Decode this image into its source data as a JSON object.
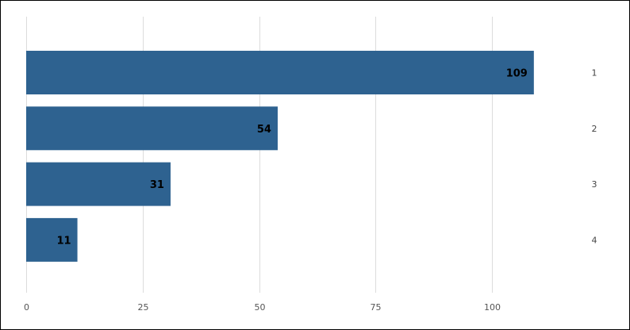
{
  "chart_data": {
    "type": "bar",
    "orientation": "horizontal",
    "categories": [
      "1",
      "2",
      "3",
      "4"
    ],
    "values": [
      109,
      54,
      31,
      11
    ],
    "xlim": [
      0,
      120
    ],
    "x_ticks": [
      0,
      25,
      50,
      75,
      100
    ],
    "title": "",
    "xlabel": "",
    "ylabel": "",
    "grid": true,
    "legend": "none",
    "category_labels_position": "right",
    "data_labels": true,
    "bar_color": "#2e6290"
  }
}
